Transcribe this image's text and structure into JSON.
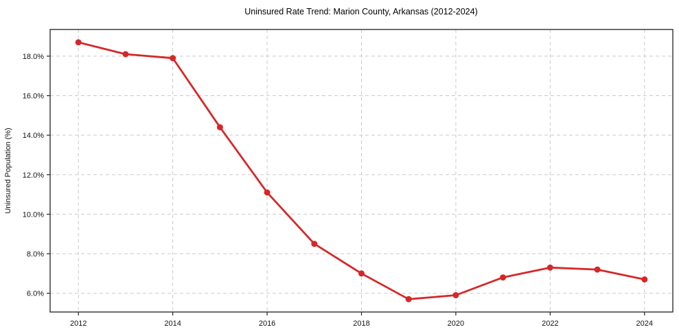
{
  "chart_data": {
    "type": "line",
    "title": "Uninsured Rate Trend: Marion County, Arkansas (2012-2024)",
    "xlabel": "",
    "ylabel": "Uninsured Population (%)",
    "x": [
      2012,
      2013,
      2014,
      2015,
      2016,
      2017,
      2018,
      2019,
      2020,
      2021,
      2022,
      2023,
      2024
    ],
    "series": [
      {
        "name": "Uninsured Rate",
        "values": [
          18.7,
          18.1,
          17.9,
          14.4,
          11.1,
          8.5,
          7.0,
          5.7,
          5.9,
          6.8,
          7.3,
          7.2,
          6.7
        ]
      }
    ],
    "xlim": [
      2011.4,
      2024.6
    ],
    "ylim": [
      5.05,
      19.35
    ],
    "xtick_values": [
      2012,
      2014,
      2016,
      2018,
      2020,
      2022,
      2024
    ],
    "xtick_labels": [
      "2012",
      "2014",
      "2016",
      "2018",
      "2020",
      "2022",
      "2024"
    ],
    "ytick_values": [
      6,
      8,
      10,
      12,
      14,
      16,
      18
    ],
    "ytick_labels": [
      "6.0%",
      "8.0%",
      "10.0%",
      "12.0%",
      "14.0%",
      "16.0%",
      "18.0%"
    ],
    "grid": true,
    "grid_style": "dashed",
    "legend": "none",
    "marker": "circle",
    "colors": {
      "line": "#d62728",
      "marker": "#d62728",
      "grid": "#c9c9c9",
      "spine": "#1f1f1f",
      "tick_text": "#111111",
      "background": "#ffffff"
    }
  }
}
